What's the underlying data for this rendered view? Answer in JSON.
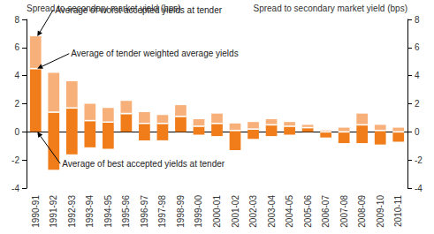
{
  "chart_data": {
    "type": "range_bar",
    "y_label": "Spread to secondary market yield (bps)",
    "y2_label": "Spread to secondary market yield (bps)",
    "categories": [
      "1990-91",
      "1991-92",
      "1992-93",
      "1993-94",
      "1994-95",
      "1995-96",
      "1996-97",
      "1997-98",
      "1998-99",
      "1999-00",
      "2000-01",
      "2001-02",
      "2002-03",
      "2003-04",
      "2004-05",
      "2005-06",
      "2006-07",
      "2007-08",
      "2008-09",
      "2009-10",
      "2010-11"
    ],
    "series": [
      {
        "name": "Average of best accepted yields at tender",
        "color": "#F07D19",
        "values": [
          0.0,
          -2.7,
          -1.6,
          -1.1,
          -1.2,
          0.0,
          -0.6,
          -0.6,
          0.0,
          -0.2,
          -0.3,
          -1.3,
          -0.5,
          -0.3,
          -0.2,
          0.0,
          -0.4,
          -0.8,
          -0.8,
          -0.9,
          -0.7
        ]
      },
      {
        "name": "Average of tender weighted average yields",
        "color": "#FFFFFF",
        "values": [
          4.5,
          1.4,
          1.7,
          0.8,
          0.7,
          1.3,
          0.6,
          0.6,
          1.1,
          0.4,
          0.6,
          0.1,
          0.2,
          0.5,
          0.4,
          0.3,
          0.0,
          0.0,
          0.5,
          0.1,
          0.0
        ]
      },
      {
        "name": "Average of worst accepted yields at tender",
        "color": "#F8B07A",
        "values": [
          6.8,
          4.2,
          3.6,
          2.0,
          1.7,
          2.2,
          1.4,
          1.2,
          1.9,
          0.9,
          1.3,
          0.6,
          0.7,
          0.9,
          0.7,
          0.5,
          0.1,
          0.3,
          1.3,
          0.5,
          0.3
        ]
      }
    ],
    "ylim": [
      -4,
      8
    ],
    "yticks": [
      -4,
      -2,
      0,
      2,
      4,
      6,
      8
    ],
    "y2lim": [
      -4,
      8
    ],
    "y2ticks": [
      -4,
      -2,
      0,
      2,
      4,
      6,
      8
    ],
    "grid": false
  }
}
